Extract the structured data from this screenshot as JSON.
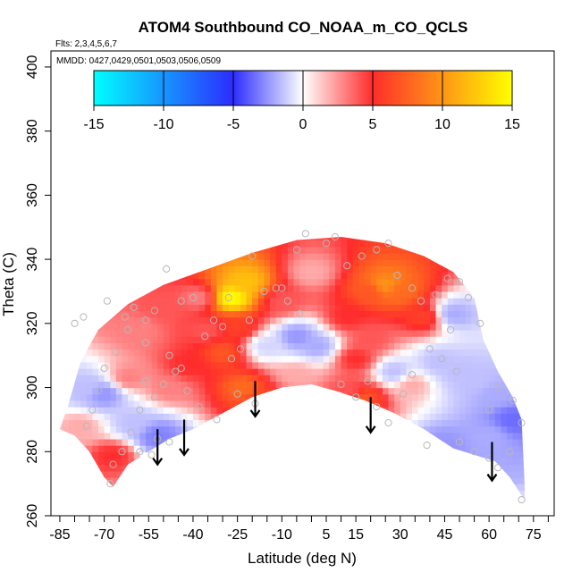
{
  "chart_data": {
    "type": "heatmap",
    "title": "ATOM4 Southbound CO_NOAA_m_CO_QCLS",
    "flights_label": "Flts: 2,3,4,5,6,7",
    "mmdd_label": "MMDD: 0427,0429,0501,0503,0506,0509",
    "xlabel": "Latitude (deg N)",
    "ylabel": "Theta (C)",
    "xlim": [
      -88,
      82
    ],
    "ylim": [
      260,
      405
    ],
    "xticks": [
      -85,
      -70,
      -55,
      -40,
      -25,
      -10,
      5,
      15,
      30,
      45,
      60,
      75
    ],
    "xticks_minor": [
      -80,
      -75,
      -65,
      -60,
      -50,
      -45,
      -35,
      -30,
      -20,
      -15,
      -5,
      0,
      10,
      20,
      25,
      35,
      40,
      50,
      55,
      65,
      70,
      80
    ],
    "yticks": [
      260,
      280,
      300,
      320,
      340,
      360,
      380,
      400
    ],
    "colorbar": {
      "range": [
        -15,
        15
      ],
      "ticks": [
        -15,
        -10,
        -5,
        0,
        5,
        10,
        15
      ],
      "colors": [
        "#00ffff",
        "#2c2cff",
        "#ffffff",
        "#ff2c2c",
        "#ffff00"
      ]
    },
    "arrows_lat": [
      -52,
      -43,
      -19,
      20,
      61
    ],
    "arrow_labels": [
      "arrow-lat-52",
      "arrow-lat-43",
      "arrow-lat-19",
      "arrow-lat-20",
      "arrow-lat-61"
    ],
    "boundary": {
      "outer_top": [
        [
          -85,
          287
        ],
        [
          -82,
          295
        ],
        [
          -78,
          308
        ],
        [
          -72,
          318
        ],
        [
          -62,
          326
        ],
        [
          -50,
          332
        ],
        [
          -35,
          337
        ],
        [
          -20,
          342
        ],
        [
          -5,
          346
        ],
        [
          10,
          347
        ],
        [
          25,
          345
        ],
        [
          38,
          341
        ],
        [
          48,
          336
        ],
        [
          55,
          328
        ],
        [
          58,
          315
        ],
        [
          63,
          305
        ],
        [
          68,
          297
        ],
        [
          71,
          290
        ],
        [
          72,
          270
        ],
        [
          72,
          265
        ]
      ],
      "inner_bottom": [
        [
          -85,
          287
        ],
        [
          -80,
          285
        ],
        [
          -75,
          280
        ],
        [
          -70,
          272
        ],
        [
          -67,
          269
        ],
        [
          -62,
          276
        ],
        [
          -55,
          280
        ],
        [
          -48,
          284
        ],
        [
          -40,
          287
        ],
        [
          -30,
          292
        ],
        [
          -20,
          297
        ],
        [
          -10,
          300
        ],
        [
          0,
          301
        ],
        [
          8,
          299
        ],
        [
          18,
          296
        ],
        [
          28,
          292
        ],
        [
          38,
          287
        ],
        [
          48,
          281
        ],
        [
          55,
          279
        ],
        [
          62,
          277
        ],
        [
          67,
          272
        ],
        [
          72,
          265
        ]
      ]
    },
    "anomalies": [
      {
        "lat": -27,
        "theta": 328,
        "value": 15
      },
      {
        "lat": -22,
        "theta": 333,
        "value": 12
      },
      {
        "lat": -25,
        "theta": 319,
        "value": 6
      },
      {
        "lat": -30,
        "theta": 311,
        "value": 7
      },
      {
        "lat": -42,
        "theta": 307,
        "value": 5
      },
      {
        "lat": -23,
        "theta": 300,
        "value": 8
      },
      {
        "lat": -17,
        "theta": 296,
        "value": 6
      },
      {
        "lat": -48,
        "theta": 300,
        "value": 3
      },
      {
        "lat": -50,
        "theta": 325,
        "value": 4
      },
      {
        "lat": -58,
        "theta": 318,
        "value": 3
      },
      {
        "lat": -38,
        "theta": 328,
        "value": 3
      },
      {
        "lat": -10,
        "theta": 327,
        "value": 4
      },
      {
        "lat": -5,
        "theta": 304,
        "value": 2
      },
      {
        "lat": -5,
        "theta": 316,
        "value": -5
      },
      {
        "lat": 2,
        "theta": 313,
        "value": -4
      },
      {
        "lat": -15,
        "theta": 313,
        "value": -2
      },
      {
        "lat": 12,
        "theta": 322,
        "value": 5
      },
      {
        "lat": 15,
        "theta": 309,
        "value": 5
      },
      {
        "lat": 25,
        "theta": 332,
        "value": 10
      },
      {
        "lat": 30,
        "theta": 330,
        "value": 8
      },
      {
        "lat": 20,
        "theta": 330,
        "value": 7
      },
      {
        "lat": 38,
        "theta": 322,
        "value": 6
      },
      {
        "lat": 20,
        "theta": 315,
        "value": 4
      },
      {
        "lat": 18,
        "theta": 297,
        "value": 7
      },
      {
        "lat": 13,
        "theta": 299,
        "value": 4
      },
      {
        "lat": 28,
        "theta": 305,
        "value": -3
      },
      {
        "lat": 34,
        "theta": 301,
        "value": 2
      },
      {
        "lat": 43,
        "theta": 308,
        "value": -3
      },
      {
        "lat": 48,
        "theta": 323,
        "value": -4
      },
      {
        "lat": 50,
        "theta": 305,
        "value": -3
      },
      {
        "lat": 45,
        "theta": 282,
        "value": -5
      },
      {
        "lat": 68,
        "theta": 290,
        "value": -7
      },
      {
        "lat": 62,
        "theta": 298,
        "value": -4
      },
      {
        "lat": 55,
        "theta": 302,
        "value": -3
      },
      {
        "lat": 60,
        "theta": 285,
        "value": -4
      },
      {
        "lat": -52,
        "theta": 285,
        "value": -6
      },
      {
        "lat": -60,
        "theta": 289,
        "value": -3
      },
      {
        "lat": -70,
        "theta": 298,
        "value": -5
      },
      {
        "lat": -76,
        "theta": 300,
        "value": -3
      },
      {
        "lat": -67,
        "theta": 279,
        "value": 5
      },
      {
        "lat": -62,
        "theta": 303,
        "value": 3
      },
      {
        "lat": -78,
        "theta": 288,
        "value": 2
      },
      {
        "lat": 0,
        "theta": 336,
        "value": 2
      },
      {
        "lat": -35,
        "theta": 318,
        "value": 4
      }
    ],
    "sample_points": [
      [
        -80,
        320
      ],
      [
        -77,
        322
      ],
      [
        -69,
        327
      ],
      [
        -63,
        322
      ],
      [
        -60,
        325
      ],
      [
        -56,
        321
      ],
      [
        -53,
        324
      ],
      [
        -49,
        337
      ],
      [
        -44,
        327
      ],
      [
        -40,
        328
      ],
      [
        -36,
        316
      ],
      [
        -33,
        321
      ],
      [
        -30,
        319
      ],
      [
        -27,
        309
      ],
      [
        -24,
        312
      ],
      [
        -21,
        321
      ],
      [
        -16,
        330
      ],
      [
        -12,
        331
      ],
      [
        -8,
        327
      ],
      [
        -4,
        323
      ],
      [
        -2,
        348
      ],
      [
        5,
        345
      ],
      [
        8,
        347
      ],
      [
        12,
        338
      ],
      [
        17,
        341
      ],
      [
        22,
        343
      ],
      [
        26,
        345
      ],
      [
        29,
        335
      ],
      [
        34,
        331
      ],
      [
        37,
        327
      ],
      [
        42,
        329
      ],
      [
        46,
        334
      ],
      [
        50,
        333
      ],
      [
        53,
        328
      ],
      [
        57,
        320
      ],
      [
        49,
        305
      ],
      [
        47,
        318
      ],
      [
        44,
        309
      ],
      [
        40,
        312
      ],
      [
        34,
        304
      ],
      [
        31,
        298
      ],
      [
        26,
        289
      ],
      [
        22,
        294
      ],
      [
        19,
        302
      ],
      [
        15,
        297
      ],
      [
        10,
        301
      ],
      [
        -19,
        295
      ],
      [
        -25,
        298
      ],
      [
        -32,
        290
      ],
      [
        -38,
        294
      ],
      [
        -42,
        299
      ],
      [
        -46,
        305
      ],
      [
        -50,
        301
      ],
      [
        -53,
        297
      ],
      [
        -56,
        302
      ],
      [
        -58,
        293
      ],
      [
        -61,
        286
      ],
      [
        -64,
        280
      ],
      [
        -67,
        276
      ],
      [
        -68,
        270
      ],
      [
        -70,
        306
      ],
      [
        -66,
        311
      ],
      [
        -62,
        318
      ],
      [
        -56,
        314
      ],
      [
        -48,
        310
      ],
      [
        -44,
        306
      ],
      [
        -72,
        299
      ],
      [
        -74,
        293
      ],
      [
        -76,
        288
      ],
      [
        -52,
        284
      ],
      [
        -48,
        283
      ],
      [
        -54,
        279
      ],
      [
        -58,
        280
      ],
      [
        60,
        278
      ],
      [
        63,
        275
      ],
      [
        67,
        280
      ],
      [
        71,
        265
      ],
      [
        71,
        289
      ],
      [
        68,
        296
      ],
      [
        63,
        300
      ],
      [
        60,
        293
      ],
      [
        55,
        280
      ],
      [
        50,
        283
      ],
      [
        39,
        282
      ],
      [
        -5,
        343
      ],
      [
        -20,
        341
      ],
      [
        -28,
        328
      ],
      [
        -10,
        331
      ]
    ]
  }
}
